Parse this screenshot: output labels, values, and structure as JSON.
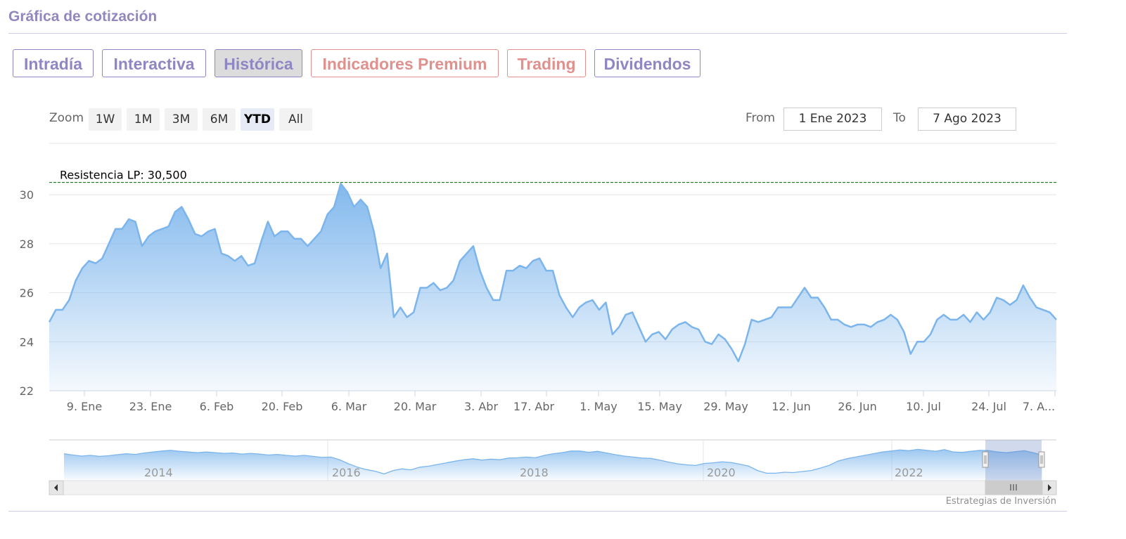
{
  "section_title": "Gráfica de cotización",
  "tabs": [
    {
      "label": "Intradía",
      "style": "purple",
      "active": false
    },
    {
      "label": "Interactiva",
      "style": "purple",
      "active": false
    },
    {
      "label": "Histórica",
      "style": "purple",
      "active": true
    },
    {
      "label": "Indicadores Premium",
      "style": "red",
      "active": false
    },
    {
      "label": "Trading",
      "style": "red",
      "active": false
    },
    {
      "label": "Dividendos",
      "style": "purple",
      "active": false
    }
  ],
  "range_selector": {
    "zoom_label": "Zoom",
    "buttons": [
      "1W",
      "1M",
      "3M",
      "6M",
      "YTD",
      "All"
    ],
    "selected": "YTD",
    "from_label": "From",
    "from_value": "1 Ene 2023",
    "to_label": "To",
    "to_value": "7 Ago 2023"
  },
  "colors": {
    "accent_purple": "#8f87c4",
    "accent_red": "#e0918e",
    "series_line": "#7cb5ec",
    "resistance_line": "#1f7a1f"
  },
  "chart_data": {
    "type": "area",
    "ylim": [
      22,
      31
    ],
    "yticks": [
      22,
      24,
      26,
      28,
      30
    ],
    "grid": true,
    "xtick_labels": [
      "9. Ene",
      "23. Ene",
      "6. Feb",
      "20. Feb",
      "6. Mar",
      "20. Mar",
      "3. Abr",
      "17. Abr",
      "1. May",
      "15. May",
      "29. May",
      "12. Jun",
      "26. Jun",
      "10. Jul",
      "24. Jul",
      "7. A..."
    ],
    "annotation": {
      "label": "Resistencia LP: 30,500",
      "value": 30.5
    },
    "series": [
      {
        "values": [
          24.8,
          25.3,
          25.3,
          25.7,
          26.5,
          27.0,
          27.3,
          27.2,
          27.4,
          28.0,
          28.6,
          28.6,
          29.0,
          28.9,
          27.9,
          28.3,
          28.5,
          28.6,
          28.7,
          29.3,
          29.5,
          29.0,
          28.4,
          28.3,
          28.5,
          28.6,
          27.6,
          27.5,
          27.3,
          27.5,
          27.1,
          27.2,
          28.1,
          28.9,
          28.3,
          28.5,
          28.5,
          28.2,
          28.2,
          27.9,
          28.2,
          28.5,
          29.2,
          29.5,
          30.45,
          30.1,
          29.5,
          29.8,
          29.5,
          28.5,
          27.0,
          27.6,
          25.0,
          25.4,
          25.0,
          25.2,
          26.2,
          26.2,
          26.4,
          26.1,
          26.2,
          26.5,
          27.3,
          27.6,
          27.9,
          26.9,
          26.2,
          25.7,
          25.7,
          26.9,
          26.9,
          27.1,
          27.0,
          27.3,
          27.4,
          26.9,
          26.9,
          25.9,
          25.4,
          25.0,
          25.4,
          25.6,
          25.7,
          25.3,
          25.6,
          24.3,
          24.6,
          25.1,
          25.2,
          24.6,
          24.0,
          24.3,
          24.4,
          24.1,
          24.5,
          24.7,
          24.8,
          24.6,
          24.5,
          24.0,
          23.9,
          24.3,
          24.1,
          23.7,
          23.2,
          23.9,
          24.9,
          24.8,
          24.9,
          25.0,
          25.4,
          25.4,
          25.4,
          25.8,
          26.2,
          25.8,
          25.8,
          25.4,
          24.9,
          24.9,
          24.7,
          24.6,
          24.7,
          24.7,
          24.6,
          24.8,
          24.9,
          25.1,
          24.9,
          24.4,
          23.5,
          24.0,
          24.0,
          24.3,
          24.9,
          25.1,
          24.9,
          24.9,
          25.1,
          24.8,
          25.2,
          24.9,
          25.2,
          25.8,
          25.7,
          25.5,
          25.7,
          26.3,
          25.8,
          25.4,
          25.3,
          25.2,
          24.9
        ]
      }
    ]
  },
  "navigator": {
    "year_labels": [
      "2014",
      "2016",
      "2018",
      "2020",
      "2022"
    ],
    "values": [
      16,
      15.2,
      14.6,
      15,
      14.4,
      14.8,
      15.4,
      16,
      15.6,
      16.4,
      17,
      17.6,
      18,
      17.4,
      17,
      16.6,
      17,
      16.6,
      16.2,
      16.4,
      15.8,
      16.2,
      15.8,
      15.2,
      15.6,
      15,
      14.6,
      15,
      14.4,
      13.8,
      14,
      12.4,
      10,
      8,
      6.6,
      5.6,
      4,
      6,
      7,
      6.4,
      8,
      8.6,
      9.6,
      10.6,
      11.6,
      12.4,
      13,
      12.2,
      12.8,
      12.4,
      13.4,
      13.6,
      14,
      13.6,
      15,
      16,
      16.6,
      17.6,
      17.6,
      16.8,
      17.4,
      16.4,
      15.4,
      14.6,
      14,
      13.4,
      13.2,
      12.2,
      11,
      10,
      9.4,
      9,
      10.2,
      10.6,
      11.2,
      10.8,
      9.8,
      8.6,
      6,
      4.4,
      4.4,
      5,
      4.8,
      5.4,
      6,
      7.4,
      9,
      11.6,
      13,
      14,
      15,
      16,
      17,
      17.6,
      18.2,
      17.8,
      18.6,
      18,
      17.4,
      18.4,
      17,
      16.8,
      17.4,
      18,
      17.8,
      17,
      16.6,
      17.2,
      17.8,
      16.6,
      15.2
    ]
  },
  "credit": "Estrategias de Inversión"
}
